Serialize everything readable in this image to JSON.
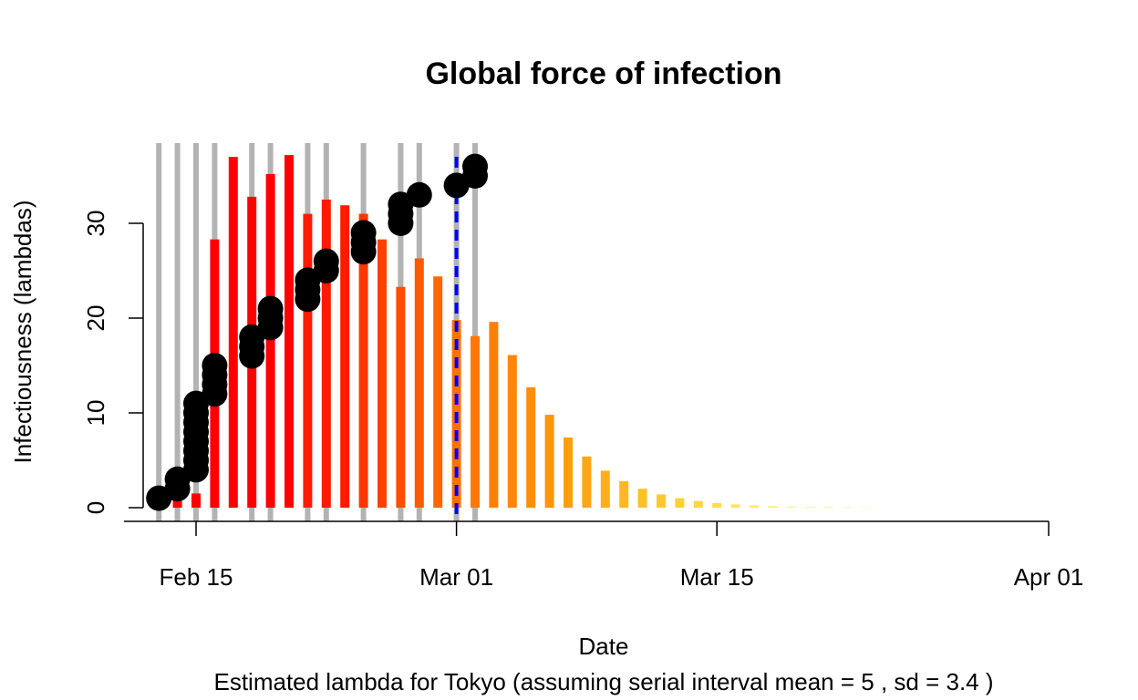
{
  "chart_data": {
    "type": "bar",
    "title": "Global force of infection",
    "xlabel": "Date",
    "ylabel": "Infectiousness (lambdas)",
    "subtitle": "Estimated lambda for Tokyo (assuming serial interval mean = 5 , sd = 3.4 )",
    "x_ticks": [
      "Feb 15",
      "Mar 01",
      "Mar 15",
      "Apr 01"
    ],
    "x_tick_days": [
      15,
      29,
      43,
      60
    ],
    "y_ticks": [
      0,
      10,
      20,
      30
    ],
    "ylim": [
      0,
      38
    ],
    "x_range_days": [
      12,
      60
    ],
    "vline_day": 29,
    "colors": {
      "bar_high": "#ff0000",
      "bar_mid": "#ff8000",
      "bar_low": "#ffff66",
      "grey_lines": "#b3b3b3",
      "points": "#000000",
      "vline": "#0000ff"
    },
    "lambda_bars": [
      {
        "day": 13,
        "value": 0.3
      },
      {
        "day": 14,
        "value": 1.0
      },
      {
        "day": 15,
        "value": 1.5
      },
      {
        "day": 16,
        "value": 28.3
      },
      {
        "day": 17,
        "value": 37.0
      },
      {
        "day": 18,
        "value": 32.8
      },
      {
        "day": 19,
        "value": 35.2
      },
      {
        "day": 20,
        "value": 37.2
      },
      {
        "day": 21,
        "value": 31.0
      },
      {
        "day": 22,
        "value": 32.5
      },
      {
        "day": 23,
        "value": 31.9
      },
      {
        "day": 24,
        "value": 31.0
      },
      {
        "day": 25,
        "value": 28.3
      },
      {
        "day": 26,
        "value": 23.3
      },
      {
        "day": 27,
        "value": 26.3
      },
      {
        "day": 28,
        "value": 24.4
      },
      {
        "day": 29,
        "value": 19.8
      },
      {
        "day": 30,
        "value": 18.1
      },
      {
        "day": 31,
        "value": 19.6
      },
      {
        "day": 32,
        "value": 16.1
      },
      {
        "day": 33,
        "value": 12.7
      },
      {
        "day": 34,
        "value": 9.8
      },
      {
        "day": 35,
        "value": 7.4
      },
      {
        "day": 36,
        "value": 5.4
      },
      {
        "day": 37,
        "value": 3.9
      },
      {
        "day": 38,
        "value": 2.8
      },
      {
        "day": 39,
        "value": 2.0
      },
      {
        "day": 40,
        "value": 1.4
      },
      {
        "day": 41,
        "value": 1.0
      },
      {
        "day": 42,
        "value": 0.7
      },
      {
        "day": 43,
        "value": 0.5
      },
      {
        "day": 44,
        "value": 0.35
      },
      {
        "day": 45,
        "value": 0.25
      },
      {
        "day": 46,
        "value": 0.18
      },
      {
        "day": 47,
        "value": 0.12
      },
      {
        "day": 48,
        "value": 0.08
      },
      {
        "day": 49,
        "value": 0.05
      },
      {
        "day": 50,
        "value": 0.03
      },
      {
        "day": 51,
        "value": 0.02
      }
    ],
    "case_days": [
      13,
      14,
      15,
      16,
      18,
      19,
      21,
      22,
      24,
      26,
      27,
      29,
      30
    ],
    "cumulative_points": [
      {
        "day": 13,
        "values": [
          1
        ]
      },
      {
        "day": 14,
        "values": [
          2,
          3
        ]
      },
      {
        "day": 15,
        "values": [
          4,
          5,
          6,
          7,
          8,
          9,
          10,
          11
        ]
      },
      {
        "day": 16,
        "values": [
          12,
          13,
          14,
          15
        ]
      },
      {
        "day": 18,
        "values": [
          16,
          17,
          18
        ]
      },
      {
        "day": 19,
        "values": [
          19,
          20,
          21
        ]
      },
      {
        "day": 21,
        "values": [
          22,
          23,
          24
        ]
      },
      {
        "day": 22,
        "values": [
          25,
          26
        ]
      },
      {
        "day": 24,
        "values": [
          27,
          28,
          29
        ]
      },
      {
        "day": 26,
        "values": [
          30,
          31,
          32
        ]
      },
      {
        "day": 27,
        "values": [
          33
        ]
      },
      {
        "day": 29,
        "values": [
          34
        ]
      },
      {
        "day": 30,
        "values": [
          35,
          36
        ]
      }
    ]
  }
}
